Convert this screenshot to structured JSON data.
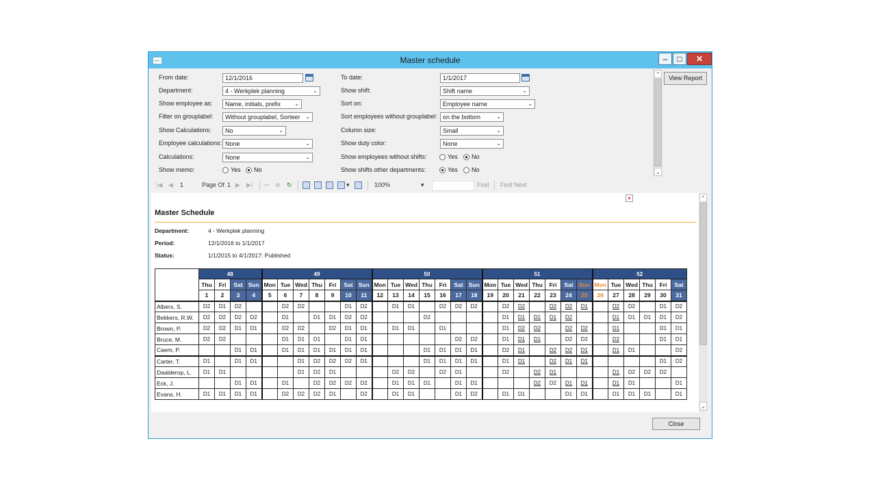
{
  "window": {
    "title": "Master schedule",
    "minimize_glyph": "–",
    "maximize_glyph": "□",
    "close_glyph": "✕",
    "app_icon": "app-icon"
  },
  "params": {
    "from_date_label": "From date:",
    "from_date_value": "12/1/2016",
    "to_date_label": "To date:",
    "to_date_value": "1/1/2017",
    "department_label": "Department:",
    "department_value": "4 - Werkplek planning",
    "show_shift_label": "Show shift:",
    "show_shift_value": "Shift name",
    "show_employee_as_label": "Show employee as:",
    "show_employee_as_value": "Name, initials, prefix",
    "sort_on_label": "Sort on:",
    "sort_on_value": "Employee name",
    "filter_label": "Filter on grouplabel:",
    "filter_value": "Without grouplabel, Sorteer",
    "sort_without_label": "Sort employees without grouplabel:",
    "sort_without_value": "on the bottom",
    "show_calc_label": "Show Calculations:",
    "show_calc_value": "No",
    "column_size_label": "Column size:",
    "column_size_value": "Small",
    "emp_calc_label": "Employee calculations:",
    "emp_calc_value": "None",
    "duty_color_label": "Show duty color:",
    "duty_color_value": "None",
    "calc_label": "Calculations:",
    "calc_value": "None",
    "emp_without_shifts_label": "Show employees without shifts:",
    "memo_label": "Show memo:",
    "other_depts_label": "Show shifts other departments:",
    "yes": "Yes",
    "no": "No",
    "view_report": "View Report"
  },
  "toolbar": {
    "page_value": "1",
    "page_of": "Page Of",
    "page_total": "1",
    "zoom": "100%",
    "find": "Find",
    "find_next": "Find Next"
  },
  "report": {
    "title": "Master Schedule",
    "department_label": "Department:",
    "department_value": "4 - Werkplek planning",
    "period_label": "Period:",
    "period_value": "12/1/2016 to 1/1/2017",
    "status_label": "Status:",
    "status_value": "1/1/2015 to 4/1/2017: Published",
    "weeks": [
      {
        "label": "48",
        "span": 4
      },
      {
        "label": "49",
        "span": 7
      },
      {
        "label": "50",
        "span": 7
      },
      {
        "label": "51",
        "span": 7
      },
      {
        "label": "52",
        "span": 6
      }
    ],
    "day_names": [
      "Thu",
      "Fri",
      "Sat",
      "Sun",
      "Mon",
      "Tue",
      "Wed",
      "Thu",
      "Fri",
      "Sat",
      "Sun",
      "Mon",
      "Tue",
      "Wed",
      "Thu",
      "Fri",
      "Sat",
      "Sun",
      "Mon",
      "Tue",
      "Wed",
      "Thu",
      "Fri",
      "Sat",
      "Sun",
      "Mon",
      "Tue",
      "Wed",
      "Thu",
      "Fri",
      "Sat"
    ],
    "day_numbers": [
      "1",
      "2",
      "3",
      "4",
      "5",
      "6",
      "7",
      "8",
      "9",
      "10",
      "11",
      "12",
      "13",
      "14",
      "15",
      "16",
      "17",
      "18",
      "19",
      "20",
      "21",
      "22",
      "23",
      "24",
      "25",
      "26",
      "27",
      "28",
      "29",
      "30",
      "31"
    ],
    "weekend_columns": [
      2,
      3,
      9,
      10,
      16,
      17,
      23,
      24,
      30
    ],
    "highlight_columns": [
      24,
      25
    ],
    "employees": [
      {
        "name": "Albers, S.",
        "shifts": [
          "D2",
          "D1",
          "D2",
          "",
          "",
          "D2",
          "D2",
          "",
          "",
          "D1",
          "D2",
          "",
          "D1",
          "D1",
          "",
          "D2",
          "D2",
          "D2",
          "",
          "D2",
          "D2u",
          "",
          "D2u",
          "D2u",
          "D1u",
          "",
          "D2u",
          "D2",
          "",
          "D1",
          "D2"
        ]
      },
      {
        "name": "Bekkers, R.W.",
        "shifts": [
          "D2",
          "D2",
          "D2",
          "D2",
          "",
          "D1",
          "",
          "D1",
          "D1",
          "D2",
          "D2",
          "",
          "",
          "",
          "D2",
          "",
          "",
          "",
          "",
          "D1",
          "D1u",
          "D1u",
          "D1u",
          "D2u",
          "",
          "",
          "D1u",
          "D1",
          "D1",
          "D1",
          "D2"
        ]
      },
      {
        "name": "Brown, P.",
        "shifts": [
          "D2",
          "D2",
          "D1",
          "D1",
          "",
          "D2",
          "D2",
          "",
          "D2",
          "D1",
          "D1",
          "",
          "D1",
          "D1",
          "",
          "D1",
          "",
          "",
          "",
          "D1",
          "D2u",
          "D2u",
          "",
          "D2u",
          "D2u",
          "",
          "D1u",
          "",
          "",
          "D1",
          "D1"
        ]
      },
      {
        "name": "Bruce, M.",
        "shifts": [
          "D2",
          "D2",
          "",
          "",
          "",
          "D1",
          "D1",
          "D1",
          "",
          "D1",
          "D1",
          "",
          "",
          "",
          "",
          "",
          "D2",
          "D2",
          "",
          "D1",
          "D1u",
          "D1u",
          "",
          "D2",
          "D2",
          "",
          "D2u",
          "",
          "",
          "D1",
          "D1"
        ]
      },
      {
        "name": "Caem, P.",
        "shifts": [
          "",
          "",
          "D1",
          "D1",
          "",
          "D1",
          "D1",
          "D1",
          "D1",
          "D1",
          "D1",
          "",
          "",
          "",
          "D1",
          "D1",
          "D1",
          "D1",
          "",
          "D2",
          "D1u",
          "",
          "D2u",
          "D2u",
          "D1u",
          "",
          "D1u",
          "D1",
          "",
          "",
          "D2"
        ]
      },
      {
        "name": "Carter, T.",
        "shifts": [
          "D1",
          "",
          "D1",
          "D1",
          "",
          "",
          "D1",
          "D2",
          "D2",
          "D2",
          "D1",
          "",
          "",
          "",
          "D1",
          "D1",
          "D1",
          "D1",
          "",
          "D1",
          "D1u",
          "",
          "D2u",
          "D1u",
          "D1u",
          "",
          "",
          "",
          "",
          "D1",
          "D2"
        ]
      },
      {
        "name": "Daalderop, L.",
        "shifts": [
          "D1",
          "D1",
          "",
          "",
          "",
          "",
          "D1",
          "D2",
          "D1",
          "",
          "",
          "",
          "D2",
          "D2",
          "",
          "D2",
          "D1",
          "",
          "",
          "D2",
          "",
          "D2u",
          "D1u",
          "",
          "",
          "",
          "D1u",
          "D2",
          "D2",
          "D2",
          ""
        ]
      },
      {
        "name": "Eck, J.",
        "shifts": [
          "",
          "",
          "D1",
          "D1",
          "",
          "D1",
          "",
          "D2",
          "D2",
          "D2",
          "D2",
          "",
          "D1",
          "D1",
          "D1",
          "",
          "D1",
          "D1",
          "",
          "",
          "",
          "D2u",
          "D2",
          "D1u",
          "D1u",
          "",
          "D1u",
          "D1",
          "",
          "",
          "D1"
        ]
      },
      {
        "name": "Evans, H.",
        "shifts": [
          "D1",
          "D1",
          "D1",
          "D1",
          "",
          "D2",
          "D2",
          "D2",
          "D1",
          "",
          "D2",
          "",
          "D1",
          "D1",
          "",
          "",
          "D1",
          "D2",
          "",
          "D1",
          "D1",
          "",
          "",
          "D1",
          "D1",
          "",
          "D1",
          "D1",
          "D1",
          "",
          "D1"
        ]
      }
    ]
  }
}
